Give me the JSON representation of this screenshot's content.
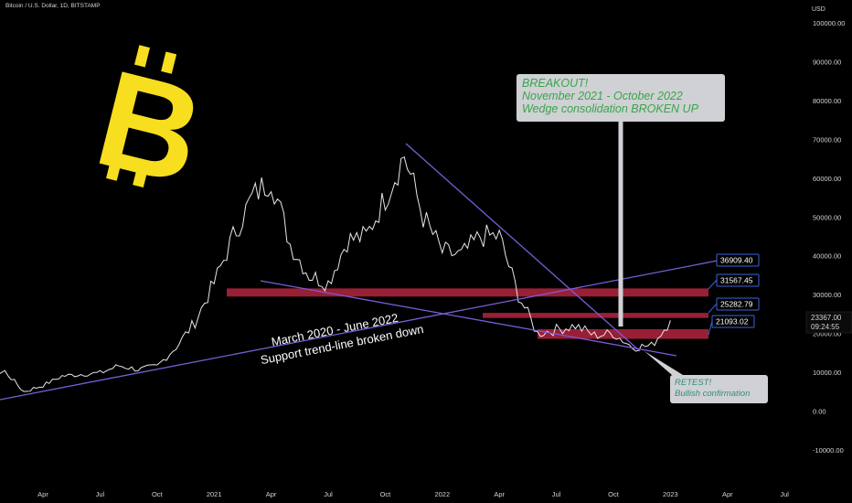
{
  "header": {
    "symbol_line": "Bitcoin / U.S. Dollar, 1D, BITSTAMP",
    "currency": "USD"
  },
  "current": {
    "price": "23367.00",
    "countdown": "09:24:55"
  },
  "callouts": {
    "breakout": [
      "BREAKOUT!",
      "November 2021 - October 2022",
      "Wedge consolidation BROKEN UP"
    ],
    "retest": [
      "RETEST!",
      "Bullish confirmation"
    ]
  },
  "annotation": {
    "line1": "March 2020 - June 2022",
    "line2": "Support trend-line broken down"
  },
  "colors": {
    "background": "#000000",
    "candle": "#e6e6e6",
    "trend_line": "#7b5cd6",
    "zone": "#b3243f",
    "label_border": "#3b63d6",
    "logo": "#f7de1f",
    "breakout_text": "#39a54a"
  },
  "chart_data": {
    "type": "line",
    "title": "Bitcoin / U.S. Dollar, 1D, BITSTAMP",
    "xlabel": "",
    "ylabel": "USD",
    "ylim": [
      -10000,
      100000
    ],
    "y_ticks": [
      "100000.00",
      "90000.00",
      "80000.00",
      "70000.00",
      "60000.00",
      "50000.00",
      "40000.00",
      "30000.00",
      "20000.00",
      "10000.00",
      "0.00",
      "-10000.00"
    ],
    "x_ticks": [
      "Apr",
      "Jul",
      "Oct",
      "2021",
      "Apr",
      "Jul",
      "Oct",
      "2022",
      "Apr",
      "Jul",
      "Oct",
      "2023",
      "Apr",
      "Jul"
    ],
    "series": [
      {
        "x": [
          "2019-09",
          "2019-10",
          "2019-11",
          "2019-12",
          "2020-01",
          "2020-02",
          "2020-03",
          "2020-04",
          "2020-05",
          "2020-06",
          "2020-07",
          "2020-08",
          "2020-09",
          "2020-10",
          "2020-11",
          "2020-12",
          "2021-01",
          "2021-02",
          "2021-03",
          "2021-04",
          "2021-05",
          "2021-06",
          "2021-07",
          "2021-08",
          "2021-09",
          "2021-10",
          "2021-11",
          "2021-12",
          "2022-01",
          "2022-02",
          "2022-03",
          "2022-04",
          "2022-05",
          "2022-06",
          "2022-07",
          "2022-08",
          "2022-09",
          "2022-10",
          "2022-11",
          "2022-12",
          "2023-01"
        ],
        "values": [
          9700,
          8500,
          9200,
          7200,
          8300,
          10200,
          5000,
          6600,
          9000,
          9500,
          9800,
          11700,
          10700,
          11500,
          16500,
          23000,
          33000,
          45000,
          55000,
          60000,
          43000,
          35000,
          33000,
          44000,
          45000,
          55000,
          66000,
          50000,
          41000,
          40000,
          45000,
          45000,
          30000,
          20000,
          21000,
          22000,
          19500,
          20000,
          16500,
          16800,
          23367
        ]
      }
    ],
    "price_labels": [
      "36909.40",
      "31567.45",
      "25282.79",
      "21093.02"
    ],
    "zones": [
      [
        29500,
        31600
      ],
      [
        24000,
        25300
      ],
      [
        18600,
        21100
      ]
    ],
    "grid": false,
    "legend": "none"
  }
}
